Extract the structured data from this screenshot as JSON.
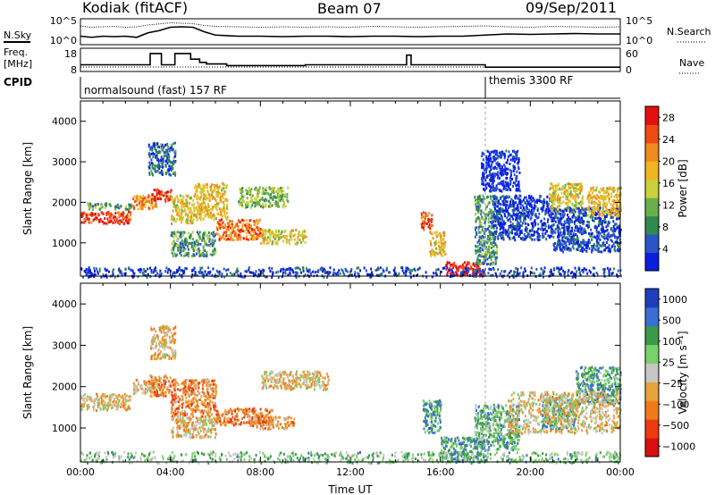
{
  "header": {
    "station": "Kodiak (fitACF)",
    "beam": "Beam 07",
    "date": "09/Sep/2011"
  },
  "noise_panel": {
    "left_label": "N.Sky",
    "right_label": "N.Search",
    "left_ticks": [
      "10^5",
      "10^0"
    ],
    "right_ticks": [
      "10^5",
      "10^0"
    ]
  },
  "freq_panel": {
    "left_label_line1": "Freq.",
    "left_label_line2": "[MHz]",
    "left_ticks": [
      "18",
      "8"
    ],
    "right_label": "Nave",
    "right_ticks": [
      "60",
      "0"
    ]
  },
  "cpid_panel": {
    "label": "CPID",
    "modes": [
      {
        "name": "normalsound (fast) 157 RF",
        "start_hour": 0
      },
      {
        "name": "themis 3300 RF",
        "start_hour": 18
      }
    ]
  },
  "colors": {
    "power": [
      "#0a1ee0",
      "#2a55c8",
      "#2f8a50",
      "#6ab04a",
      "#c9d23a",
      "#f2b51e",
      "#f08a1e",
      "#ee4a14",
      "#e41010"
    ],
    "velocity": [
      "#1f3ebd",
      "#3a6fd1",
      "#3a9a4a",
      "#7ad06a",
      "#c6c6c6",
      "#e8a23a",
      "#f07a1a",
      "#ec3a12",
      "#d81010"
    ]
  },
  "chart_data": [
    {
      "type": "heatmap",
      "ylabel": "Slant Range [km]",
      "xlabel": "",
      "xlim": [
        0,
        24
      ],
      "ylim": [
        180,
        4500
      ],
      "yticks": [
        "1000",
        "2000",
        "3000",
        "4000"
      ],
      "colorbar": {
        "label": "Power [dB]",
        "ticks": [
          "4",
          "8",
          "12",
          "16",
          "20",
          "24",
          "28"
        ],
        "range": [
          0,
          30
        ]
      },
      "scatter_regions": [
        {
          "t": [
            0.0,
            2.2
          ],
          "r": [
            1500,
            1800
          ],
          "level": 0.88
        },
        {
          "t": [
            0.3,
            2.3
          ],
          "r": [
            1850,
            2000
          ],
          "level": 0.35
        },
        {
          "t": [
            2.3,
            3.4
          ],
          "r": [
            1850,
            2200
          ],
          "level": 0.72
        },
        {
          "t": [
            3.1,
            4.0
          ],
          "r": [
            2050,
            2350
          ],
          "level": 0.9
        },
        {
          "t": [
            3.0,
            4.2
          ],
          "r": [
            2700,
            3500
          ],
          "level": 0.2
        },
        {
          "t": [
            4.0,
            5.0
          ],
          "r": [
            1500,
            2200
          ],
          "level": 0.55
        },
        {
          "t": [
            5.0,
            6.5
          ],
          "r": [
            1600,
            2500
          ],
          "level": 0.6
        },
        {
          "t": [
            6.0,
            8.0
          ],
          "r": [
            1100,
            1600
          ],
          "level": 0.78
        },
        {
          "t": [
            8.0,
            10.0
          ],
          "r": [
            1000,
            1350
          ],
          "level": 0.55
        },
        {
          "t": [
            7.0,
            9.2
          ],
          "r": [
            1900,
            2400
          ],
          "level": 0.4
        },
        {
          "t": [
            4.0,
            6.0
          ],
          "r": [
            700,
            1300
          ],
          "level": 0.3
        },
        {
          "t": [
            15.1,
            15.6
          ],
          "r": [
            1300,
            1800
          ],
          "level": 0.85
        },
        {
          "t": [
            15.5,
            16.2
          ],
          "r": [
            700,
            1300
          ],
          "level": 0.6
        },
        {
          "t": [
            16.2,
            17.9
          ],
          "r": [
            200,
            550
          ],
          "level": 0.95
        },
        {
          "t": [
            17.5,
            18.5
          ],
          "r": [
            500,
            2200
          ],
          "level": 0.3
        },
        {
          "t": [
            18.3,
            21.0
          ],
          "r": [
            1100,
            2200
          ],
          "level": 0.1
        },
        {
          "t": [
            20.8,
            22.3
          ],
          "r": [
            1800,
            2500
          ],
          "level": 0.55
        },
        {
          "t": [
            21.0,
            24.0
          ],
          "r": [
            800,
            1900
          ],
          "level": 0.12
        },
        {
          "t": [
            22.5,
            24.0
          ],
          "r": [
            1700,
            2400
          ],
          "level": 0.6
        },
        {
          "t": [
            0.0,
            24.0
          ],
          "r": [
            180,
            420
          ],
          "level": 0.1
        },
        {
          "t": [
            17.8,
            19.5
          ],
          "r": [
            2300,
            3300
          ],
          "level": 0.05
        }
      ]
    },
    {
      "type": "heatmap",
      "ylabel": "Slant Range [km]",
      "xlabel": "Time UT",
      "xlim": [
        0,
        24
      ],
      "ylim": [
        180,
        4500
      ],
      "xticks": [
        "00:00",
        "04:00",
        "08:00",
        "12:00",
        "16:00",
        "20:00",
        "00:00"
      ],
      "yticks": [
        "1000",
        "2000",
        "3000",
        "4000"
      ],
      "colorbar": {
        "label": "Velocity [m s⁻¹]",
        "ticks": [
          "1000",
          "500",
          "100",
          "25",
          "−25",
          "−100",
          "−500",
          "−1000"
        ],
        "range": [
          1000,
          -1000
        ]
      },
      "scatter_regions": [
        {
          "t": [
            0.0,
            2.2
          ],
          "r": [
            1450,
            1850
          ],
          "level": 0.45
        },
        {
          "t": [
            2.3,
            3.4
          ],
          "r": [
            1850,
            2200
          ],
          "level": 0.42
        },
        {
          "t": [
            3.1,
            4.2
          ],
          "r": [
            2700,
            3500
          ],
          "level": 0.42
        },
        {
          "t": [
            3.0,
            4.0
          ],
          "r": [
            1800,
            2300
          ],
          "level": 0.3
        },
        {
          "t": [
            4.0,
            6.0
          ],
          "r": [
            1300,
            2200
          ],
          "level": 0.3
        },
        {
          "t": [
            6.0,
            8.5
          ],
          "r": [
            1100,
            1500
          ],
          "level": 0.3
        },
        {
          "t": [
            7.5,
            9.5
          ],
          "r": [
            1000,
            1300
          ],
          "level": 0.34
        },
        {
          "t": [
            8.0,
            11.0
          ],
          "r": [
            1950,
            2400
          ],
          "level": 0.45
        },
        {
          "t": [
            4.0,
            6.0
          ],
          "r": [
            800,
            1300
          ],
          "level": 0.45
        },
        {
          "t": [
            15.2,
            16.0
          ],
          "r": [
            900,
            1700
          ],
          "level": 0.72
        },
        {
          "t": [
            16.0,
            18.0
          ],
          "r": [
            200,
            800
          ],
          "level": 0.72
        },
        {
          "t": [
            17.5,
            19.5
          ],
          "r": [
            500,
            1600
          ],
          "level": 0.68
        },
        {
          "t": [
            20.5,
            22.0
          ],
          "r": [
            1000,
            1800
          ],
          "level": 0.7
        },
        {
          "t": [
            22.0,
            24.0
          ],
          "r": [
            1600,
            2500
          ],
          "level": 0.72
        },
        {
          "t": [
            19.0,
            24.0
          ],
          "r": [
            900,
            1900
          ],
          "level": 0.45
        },
        {
          "t": [
            0.0,
            24.0
          ],
          "r": [
            180,
            450
          ],
          "level": 0.62
        }
      ]
    },
    {
      "type": "line",
      "name": "N.Sky / N.Search",
      "x": [
        0,
        0.5,
        1,
        1.5,
        2,
        2.5,
        3,
        3.5,
        4,
        4.5,
        5,
        5.5,
        6,
        7,
        8,
        9,
        10,
        11,
        12,
        13,
        14,
        15,
        16,
        17,
        18,
        19,
        20,
        21,
        22,
        23,
        24
      ],
      "sky": [
        0.3,
        0.25,
        0.3,
        0.28,
        0.3,
        0.25,
        0.45,
        0.55,
        0.7,
        0.72,
        0.7,
        0.5,
        0.35,
        0.3,
        0.3,
        0.28,
        0.3,
        0.3,
        0.28,
        0.3,
        0.3,
        0.28,
        0.3,
        0.3,
        0.35,
        0.4,
        0.38,
        0.4,
        0.42,
        0.4,
        0.4
      ],
      "search": [
        0.75,
        0.7,
        0.72,
        0.74,
        0.7,
        0.72,
        0.8,
        0.85,
        0.9,
        0.88,
        0.86,
        0.78,
        0.74,
        0.72,
        0.7,
        0.72,
        0.7,
        0.72,
        0.7,
        0.74,
        0.72,
        0.7,
        0.72,
        0.74,
        0.76,
        0.72,
        0.7,
        0.74,
        0.72,
        0.7,
        0.72
      ]
    },
    {
      "type": "line",
      "name": "Freq",
      "x": [
        0,
        3.1,
        3.1,
        3.6,
        3.6,
        4.2,
        4.2,
        4.9,
        4.9,
        5.3,
        5.3,
        5.6,
        5.6,
        6.5,
        6.5,
        10.0,
        10.0,
        14.5,
        14.5,
        14.7,
        14.7,
        18.0,
        18.0,
        24.0
      ],
      "freq": [
        10.5,
        10.5,
        17.5,
        17.5,
        10.5,
        10.5,
        17.5,
        17.5,
        14.0,
        14.0,
        12.0,
        12.0,
        11.0,
        11.0,
        10.0,
        10.0,
        10.5,
        10.5,
        16.5,
        16.5,
        10.5,
        10.5,
        9.0,
        9.0
      ]
    }
  ]
}
